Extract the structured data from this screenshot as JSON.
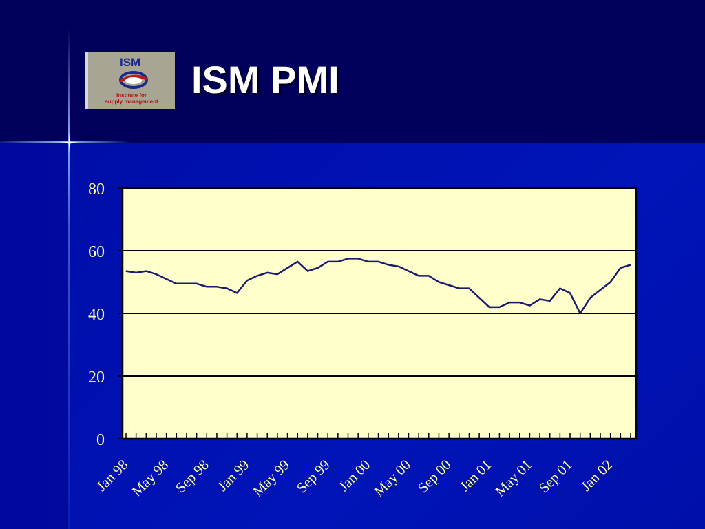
{
  "slide": {
    "title": "ISM PMI",
    "logo": {
      "name": "ism-logo",
      "text": "ISM",
      "caption_line1": "institute for",
      "caption_line2": "supply management"
    },
    "colors": {
      "background": "#00005e",
      "plot_area": "#ffffcc",
      "line": "#1a1a6e",
      "axis_text": "#ffff99",
      "title": "#ffffff"
    }
  },
  "chart_data": {
    "type": "line",
    "title": "",
    "xlabel": "",
    "ylabel": "",
    "ylim": [
      0,
      80
    ],
    "yticks": [
      0,
      20,
      40,
      60,
      80
    ],
    "grid": "horizontal",
    "x_tick_labels": [
      "Jan 98",
      "May 98",
      "Sep 98",
      "Jan 99",
      "May 99",
      "Sep 99",
      "Jan 00",
      "May 00",
      "Sep 00",
      "Jan 01",
      "May 01",
      "Sep 01",
      "Jan 02"
    ],
    "x_tick_every": 4,
    "series": [
      {
        "values": [
          53.5,
          53,
          53.5,
          52.5,
          51,
          49.5,
          49.5,
          49.5,
          48.5,
          48.5,
          48,
          46.5,
          50.5,
          52,
          53,
          52.5,
          54.5,
          56.5,
          53.5,
          54.5,
          56.5,
          56.5,
          57.5,
          57.5,
          56.5,
          56.5,
          55.5,
          55,
          53.5,
          52,
          52,
          50,
          49,
          48,
          48,
          45,
          42,
          42,
          43.5,
          43.5,
          42.5,
          44.5,
          44,
          48,
          46.5,
          40,
          45,
          47.5,
          50,
          54.5,
          55.5
        ]
      }
    ]
  }
}
